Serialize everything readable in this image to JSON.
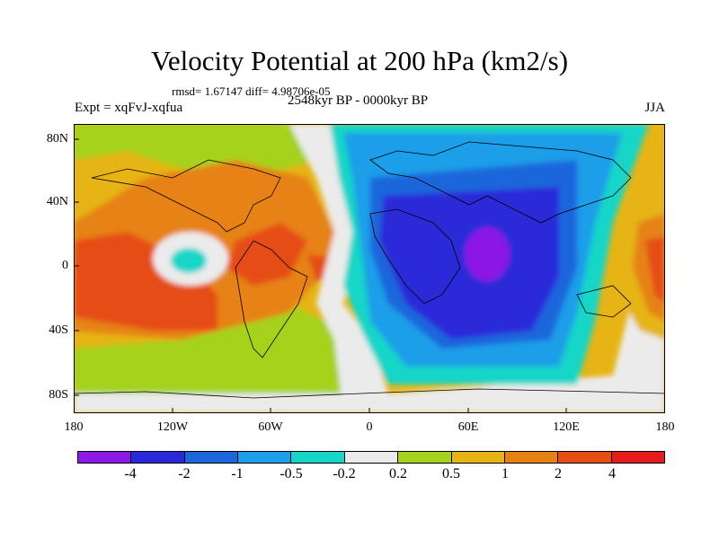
{
  "title": "Velocity Potential at 200 hPa (km2/s)",
  "stats": "rmsd= 1.67147 diff= 4.98706e-05",
  "expt": "Expt = xqFvJ-xqfua",
  "period": "2548kyr BP - 0000kyr BP",
  "season": "JJA",
  "y_axis": {
    "labels": [
      "80N",
      "40N",
      "0",
      "40S",
      "80S"
    ]
  },
  "x_axis": {
    "labels": [
      "180",
      "120W",
      "60W",
      "0",
      "60E",
      "120E",
      "180"
    ]
  },
  "colorbar": {
    "labels": [
      "-4",
      "-2",
      "-1",
      "-0.5",
      "-0.2",
      "0.2",
      "0.5",
      "1",
      "2",
      "4"
    ],
    "colors": [
      "#8c19e6",
      "#2929d9",
      "#1e66dc",
      "#1e9ee8",
      "#16d6c8",
      "#ebebeb",
      "#a6d21e",
      "#e6b414",
      "#e68214",
      "#e64e14",
      "#e61c1c"
    ]
  }
}
